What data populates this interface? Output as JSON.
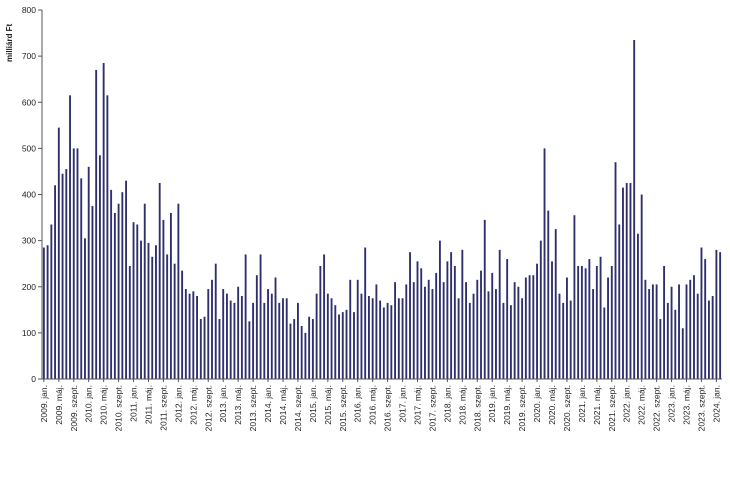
{
  "chart_data": {
    "type": "bar",
    "ylabel": "milliárd Ft",
    "ylim": [
      0,
      800
    ],
    "y_ticks": [
      0,
      100,
      200,
      300,
      400,
      500,
      600,
      700,
      800
    ],
    "grid": false,
    "bar_color": "#2f2f6e",
    "x_labels": [
      "2009. jan.",
      "2009. máj.",
      "2009. szept.",
      "2010. jan.",
      "2010. máj.",
      "2010. szept.",
      "2011. jan.",
      "2011. máj.",
      "2011. szept.",
      "2012. jan.",
      "2012. máj.",
      "2012. szept.",
      "2013. jan.",
      "2013. máj.",
      "2013. szept.",
      "2014. jan.",
      "2014. máj.",
      "2014. szept.",
      "2015. jan.",
      "2015. máj.",
      "2015. szept.",
      "2016. jan.",
      "2016. máj.",
      "2016. szept.",
      "2017. jan.",
      "2017. máj.",
      "2017. szept.",
      "2018. jan.",
      "2018. máj.",
      "2018. szept.",
      "2019. jan.",
      "2019. máj.",
      "2019. szept.",
      "2020. jan.",
      "2020. máj.",
      "2020. szept.",
      "2021. jan.",
      "2021. máj.",
      "2021. szept.",
      "2022. jan.",
      "2022. máj.",
      "2022. szept.",
      "2023. jan.",
      "2023. máj.",
      "2023. szept.",
      "2024. jan."
    ],
    "values": [
      285,
      290,
      335,
      420,
      545,
      445,
      455,
      615,
      500,
      500,
      435,
      305,
      460,
      375,
      670,
      485,
      685,
      615,
      410,
      360,
      380,
      405,
      430,
      245,
      340,
      335,
      300,
      380,
      295,
      265,
      290,
      425,
      345,
      270,
      360,
      250,
      380,
      235,
      195,
      185,
      190,
      180,
      130,
      135,
      195,
      215,
      250,
      130,
      195,
      185,
      170,
      165,
      200,
      180,
      270,
      125,
      165,
      225,
      270,
      165,
      195,
      185,
      220,
      165,
      175,
      175,
      120,
      130,
      165,
      115,
      100,
      135,
      130,
      185,
      245,
      270,
      185,
      175,
      160,
      140,
      145,
      150,
      215,
      145,
      215,
      185,
      285,
      180,
      175,
      205,
      170,
      155,
      165,
      160,
      210,
      175,
      175,
      205,
      275,
      210,
      255,
      240,
      200,
      215,
      195,
      230,
      300,
      210,
      255,
      275,
      245,
      175,
      280,
      210,
      165,
      185,
      215,
      235,
      345,
      190,
      230,
      195,
      280,
      165,
      260,
      160,
      210,
      200,
      175,
      220,
      225,
      225,
      250,
      300,
      500,
      365,
      255,
      325,
      185,
      165,
      220,
      170,
      355,
      245,
      245,
      240,
      260,
      195,
      245,
      265,
      155,
      220,
      245,
      470,
      335,
      415,
      425,
      425,
      735,
      315,
      400,
      215,
      195,
      205,
      205,
      130,
      245,
      165,
      200,
      150,
      205,
      110,
      205,
      215,
      225,
      185,
      285,
      260,
      170,
      180,
      280,
      275
    ]
  }
}
